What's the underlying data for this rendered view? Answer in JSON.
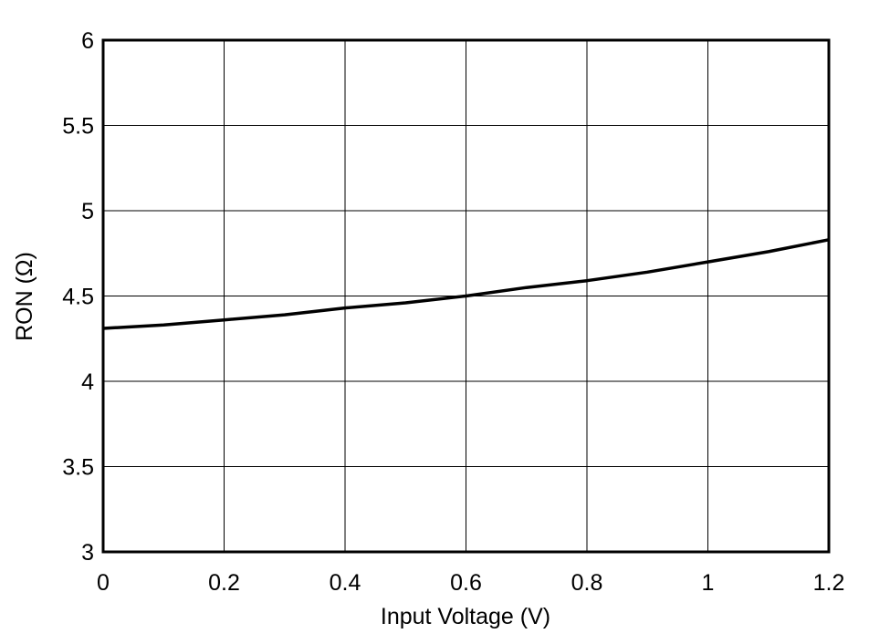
{
  "chart_data": {
    "type": "line",
    "title": "",
    "xlabel": "Input Voltage (V)",
    "ylabel": "RON (Ω)",
    "xlim": [
      0,
      1.2
    ],
    "ylim": [
      3,
      6
    ],
    "xticks": [
      "0",
      "0.2",
      "0.4",
      "0.6",
      "0.8",
      "1",
      "1.2"
    ],
    "yticks": [
      "3",
      "3.5",
      "4",
      "4.5",
      "5",
      "5.5",
      "6"
    ],
    "grid": true,
    "series": [
      {
        "color": "#000000",
        "x": [
          0,
          0.1,
          0.2,
          0.3,
          0.4,
          0.5,
          0.6,
          0.7,
          0.8,
          0.9,
          1.0,
          1.1,
          1.2
        ],
        "y": [
          4.31,
          4.33,
          4.36,
          4.39,
          4.43,
          4.46,
          4.5,
          4.55,
          4.59,
          4.64,
          4.7,
          4.76,
          4.83
        ]
      }
    ]
  }
}
